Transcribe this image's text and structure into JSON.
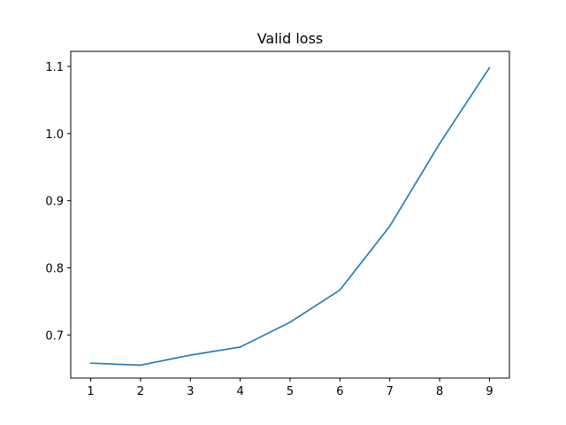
{
  "chart_data": {
    "type": "line",
    "title": "Valid loss",
    "xlabel": "",
    "ylabel": "",
    "x": [
      1,
      2,
      3,
      4,
      5,
      6,
      7,
      8,
      9
    ],
    "series": [
      {
        "values": [
          0.658,
          0.655,
          0.67,
          0.682,
          0.719,
          0.767,
          0.862,
          0.985,
          1.098
        ],
        "color": "#1f77b4"
      }
    ],
    "xlim": [
      0.6,
      9.4
    ],
    "ylim": [
      0.6358,
      1.1224
    ],
    "xticks": [
      1,
      2,
      3,
      4,
      5,
      6,
      7,
      8,
      9
    ],
    "yticks": [
      0.7,
      0.8,
      0.9,
      1.0,
      1.1
    ],
    "xtick_labels": [
      "1",
      "2",
      "3",
      "4",
      "5",
      "6",
      "7",
      "8",
      "9"
    ],
    "ytick_labels": [
      "0.7",
      "0.8",
      "0.9",
      "1.0",
      "1.1"
    ],
    "grid": false,
    "legend": false
  }
}
